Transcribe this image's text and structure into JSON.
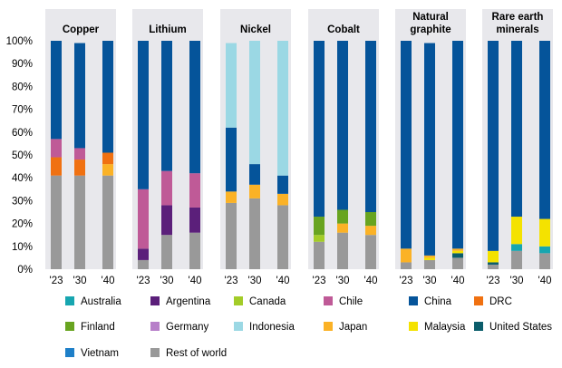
{
  "chart_data": {
    "type": "bar",
    "stacked": true,
    "y_axis": {
      "min": 0,
      "max": 100,
      "step": 10,
      "tick_suffix": "%"
    },
    "grid": false,
    "legend_position": "bottom",
    "periods": [
      "'23",
      "'30",
      "'40"
    ],
    "legend": [
      {
        "name": "Australia",
        "color": "#17a6b0"
      },
      {
        "name": "Argentina",
        "color": "#5b1f7a"
      },
      {
        "name": "Canada",
        "color": "#a3cc28"
      },
      {
        "name": "Chile",
        "color": "#bf5a97"
      },
      {
        "name": "China",
        "color": "#05549a"
      },
      {
        "name": "DRC",
        "color": "#f07111"
      },
      {
        "name": "Finland",
        "color": "#68a420"
      },
      {
        "name": "Germany",
        "color": "#b77fc9"
      },
      {
        "name": "Indonesia",
        "color": "#9bd8e4"
      },
      {
        "name": "Japan",
        "color": "#fbb226"
      },
      {
        "name": "Malaysia",
        "color": "#f4e200"
      },
      {
        "name": "United States",
        "color": "#0b5d6b"
      },
      {
        "name": "Vietnam",
        "color": "#1e7fc8"
      },
      {
        "name": "Rest of world",
        "color": "#999999"
      }
    ],
    "panels": [
      {
        "title": [
          "Copper"
        ],
        "bars": [
          {
            "period": "'23",
            "segments": [
              {
                "name": "Rest of world",
                "value": 41
              },
              {
                "name": "DRC",
                "value": 8
              },
              {
                "name": "Chile",
                "value": 8
              },
              {
                "name": "China",
                "value": 43
              }
            ]
          },
          {
            "period": "'30",
            "segments": [
              {
                "name": "Rest of world",
                "value": 41
              },
              {
                "name": "DRC",
                "value": 7
              },
              {
                "name": "Chile",
                "value": 5
              },
              {
                "name": "China",
                "value": 46
              }
            ]
          },
          {
            "period": "'40",
            "segments": [
              {
                "name": "Rest of world",
                "value": 41
              },
              {
                "name": "Japan",
                "value": 5
              },
              {
                "name": "DRC",
                "value": 5
              },
              {
                "name": "China",
                "value": 49
              }
            ]
          }
        ]
      },
      {
        "title": [
          "Lithium"
        ],
        "bars": [
          {
            "period": "'23",
            "segments": [
              {
                "name": "Rest of world",
                "value": 4
              },
              {
                "name": "Argentina",
                "value": 5
              },
              {
                "name": "Chile",
                "value": 26
              },
              {
                "name": "China",
                "value": 65
              }
            ]
          },
          {
            "period": "'30",
            "segments": [
              {
                "name": "Rest of world",
                "value": 15
              },
              {
                "name": "Argentina",
                "value": 13
              },
              {
                "name": "Chile",
                "value": 15
              },
              {
                "name": "China",
                "value": 57
              }
            ]
          },
          {
            "period": "'40",
            "segments": [
              {
                "name": "Rest of world",
                "value": 16
              },
              {
                "name": "Argentina",
                "value": 11
              },
              {
                "name": "Chile",
                "value": 15
              },
              {
                "name": "China",
                "value": 58
              }
            ]
          }
        ]
      },
      {
        "title": [
          "Nickel"
        ],
        "bars": [
          {
            "period": "'23",
            "segments": [
              {
                "name": "Rest of world",
                "value": 29
              },
              {
                "name": "Japan",
                "value": 5
              },
              {
                "name": "China",
                "value": 28
              },
              {
                "name": "Indonesia",
                "value": 37
              }
            ]
          },
          {
            "period": "'30",
            "segments": [
              {
                "name": "Rest of world",
                "value": 31
              },
              {
                "name": "Japan",
                "value": 6
              },
              {
                "name": "China",
                "value": 9
              },
              {
                "name": "Indonesia",
                "value": 54
              }
            ]
          },
          {
            "period": "'40",
            "segments": [
              {
                "name": "Rest of world",
                "value": 28
              },
              {
                "name": "Japan",
                "value": 5
              },
              {
                "name": "China",
                "value": 8
              },
              {
                "name": "Indonesia",
                "value": 59
              }
            ]
          }
        ]
      },
      {
        "title": [
          "Cobalt"
        ],
        "bars": [
          {
            "period": "'23",
            "segments": [
              {
                "name": "Rest of world",
                "value": 12
              },
              {
                "name": "Canada",
                "value": 3
              },
              {
                "name": "Finland",
                "value": 8
              },
              {
                "name": "China",
                "value": 77
              }
            ]
          },
          {
            "period": "'30",
            "segments": [
              {
                "name": "Rest of world",
                "value": 16
              },
              {
                "name": "Japan",
                "value": 4
              },
              {
                "name": "Finland",
                "value": 6
              },
              {
                "name": "China",
                "value": 74
              }
            ]
          },
          {
            "period": "'40",
            "segments": [
              {
                "name": "Rest of world",
                "value": 15
              },
              {
                "name": "Japan",
                "value": 4
              },
              {
                "name": "Finland",
                "value": 6
              },
              {
                "name": "China",
                "value": 75
              }
            ]
          }
        ]
      },
      {
        "title": [
          "Natural",
          "graphite"
        ],
        "bars": [
          {
            "period": "'23",
            "segments": [
              {
                "name": "Rest of world",
                "value": 3
              },
              {
                "name": "Japan",
                "value": 6
              },
              {
                "name": "China",
                "value": 91
              }
            ]
          },
          {
            "period": "'30",
            "segments": [
              {
                "name": "Rest of world",
                "value": 4
              },
              {
                "name": "Malaysia",
                "value": 1
              },
              {
                "name": "Japan",
                "value": 1
              },
              {
                "name": "China",
                "value": 93
              }
            ]
          },
          {
            "period": "'40",
            "segments": [
              {
                "name": "Rest of world",
                "value": 5
              },
              {
                "name": "United States",
                "value": 2
              },
              {
                "name": "Malaysia",
                "value": 1
              },
              {
                "name": "Japan",
                "value": 1
              },
              {
                "name": "China",
                "value": 91
              }
            ]
          }
        ]
      },
      {
        "title": [
          "Rare earth",
          "minerals"
        ],
        "bars": [
          {
            "period": "'23",
            "segments": [
              {
                "name": "Rest of world",
                "value": 2
              },
              {
                "name": "United States",
                "value": 1
              },
              {
                "name": "Malaysia",
                "value": 5
              },
              {
                "name": "China",
                "value": 92
              }
            ]
          },
          {
            "period": "'30",
            "segments": [
              {
                "name": "Rest of world",
                "value": 8
              },
              {
                "name": "Australia",
                "value": 3
              },
              {
                "name": "Malaysia",
                "value": 12
              },
              {
                "name": "China",
                "value": 77
              }
            ]
          },
          {
            "period": "'40",
            "segments": [
              {
                "name": "Rest of world",
                "value": 7
              },
              {
                "name": "Australia",
                "value": 3
              },
              {
                "name": "Malaysia",
                "value": 12
              },
              {
                "name": "China",
                "value": 78
              }
            ]
          }
        ]
      }
    ]
  }
}
